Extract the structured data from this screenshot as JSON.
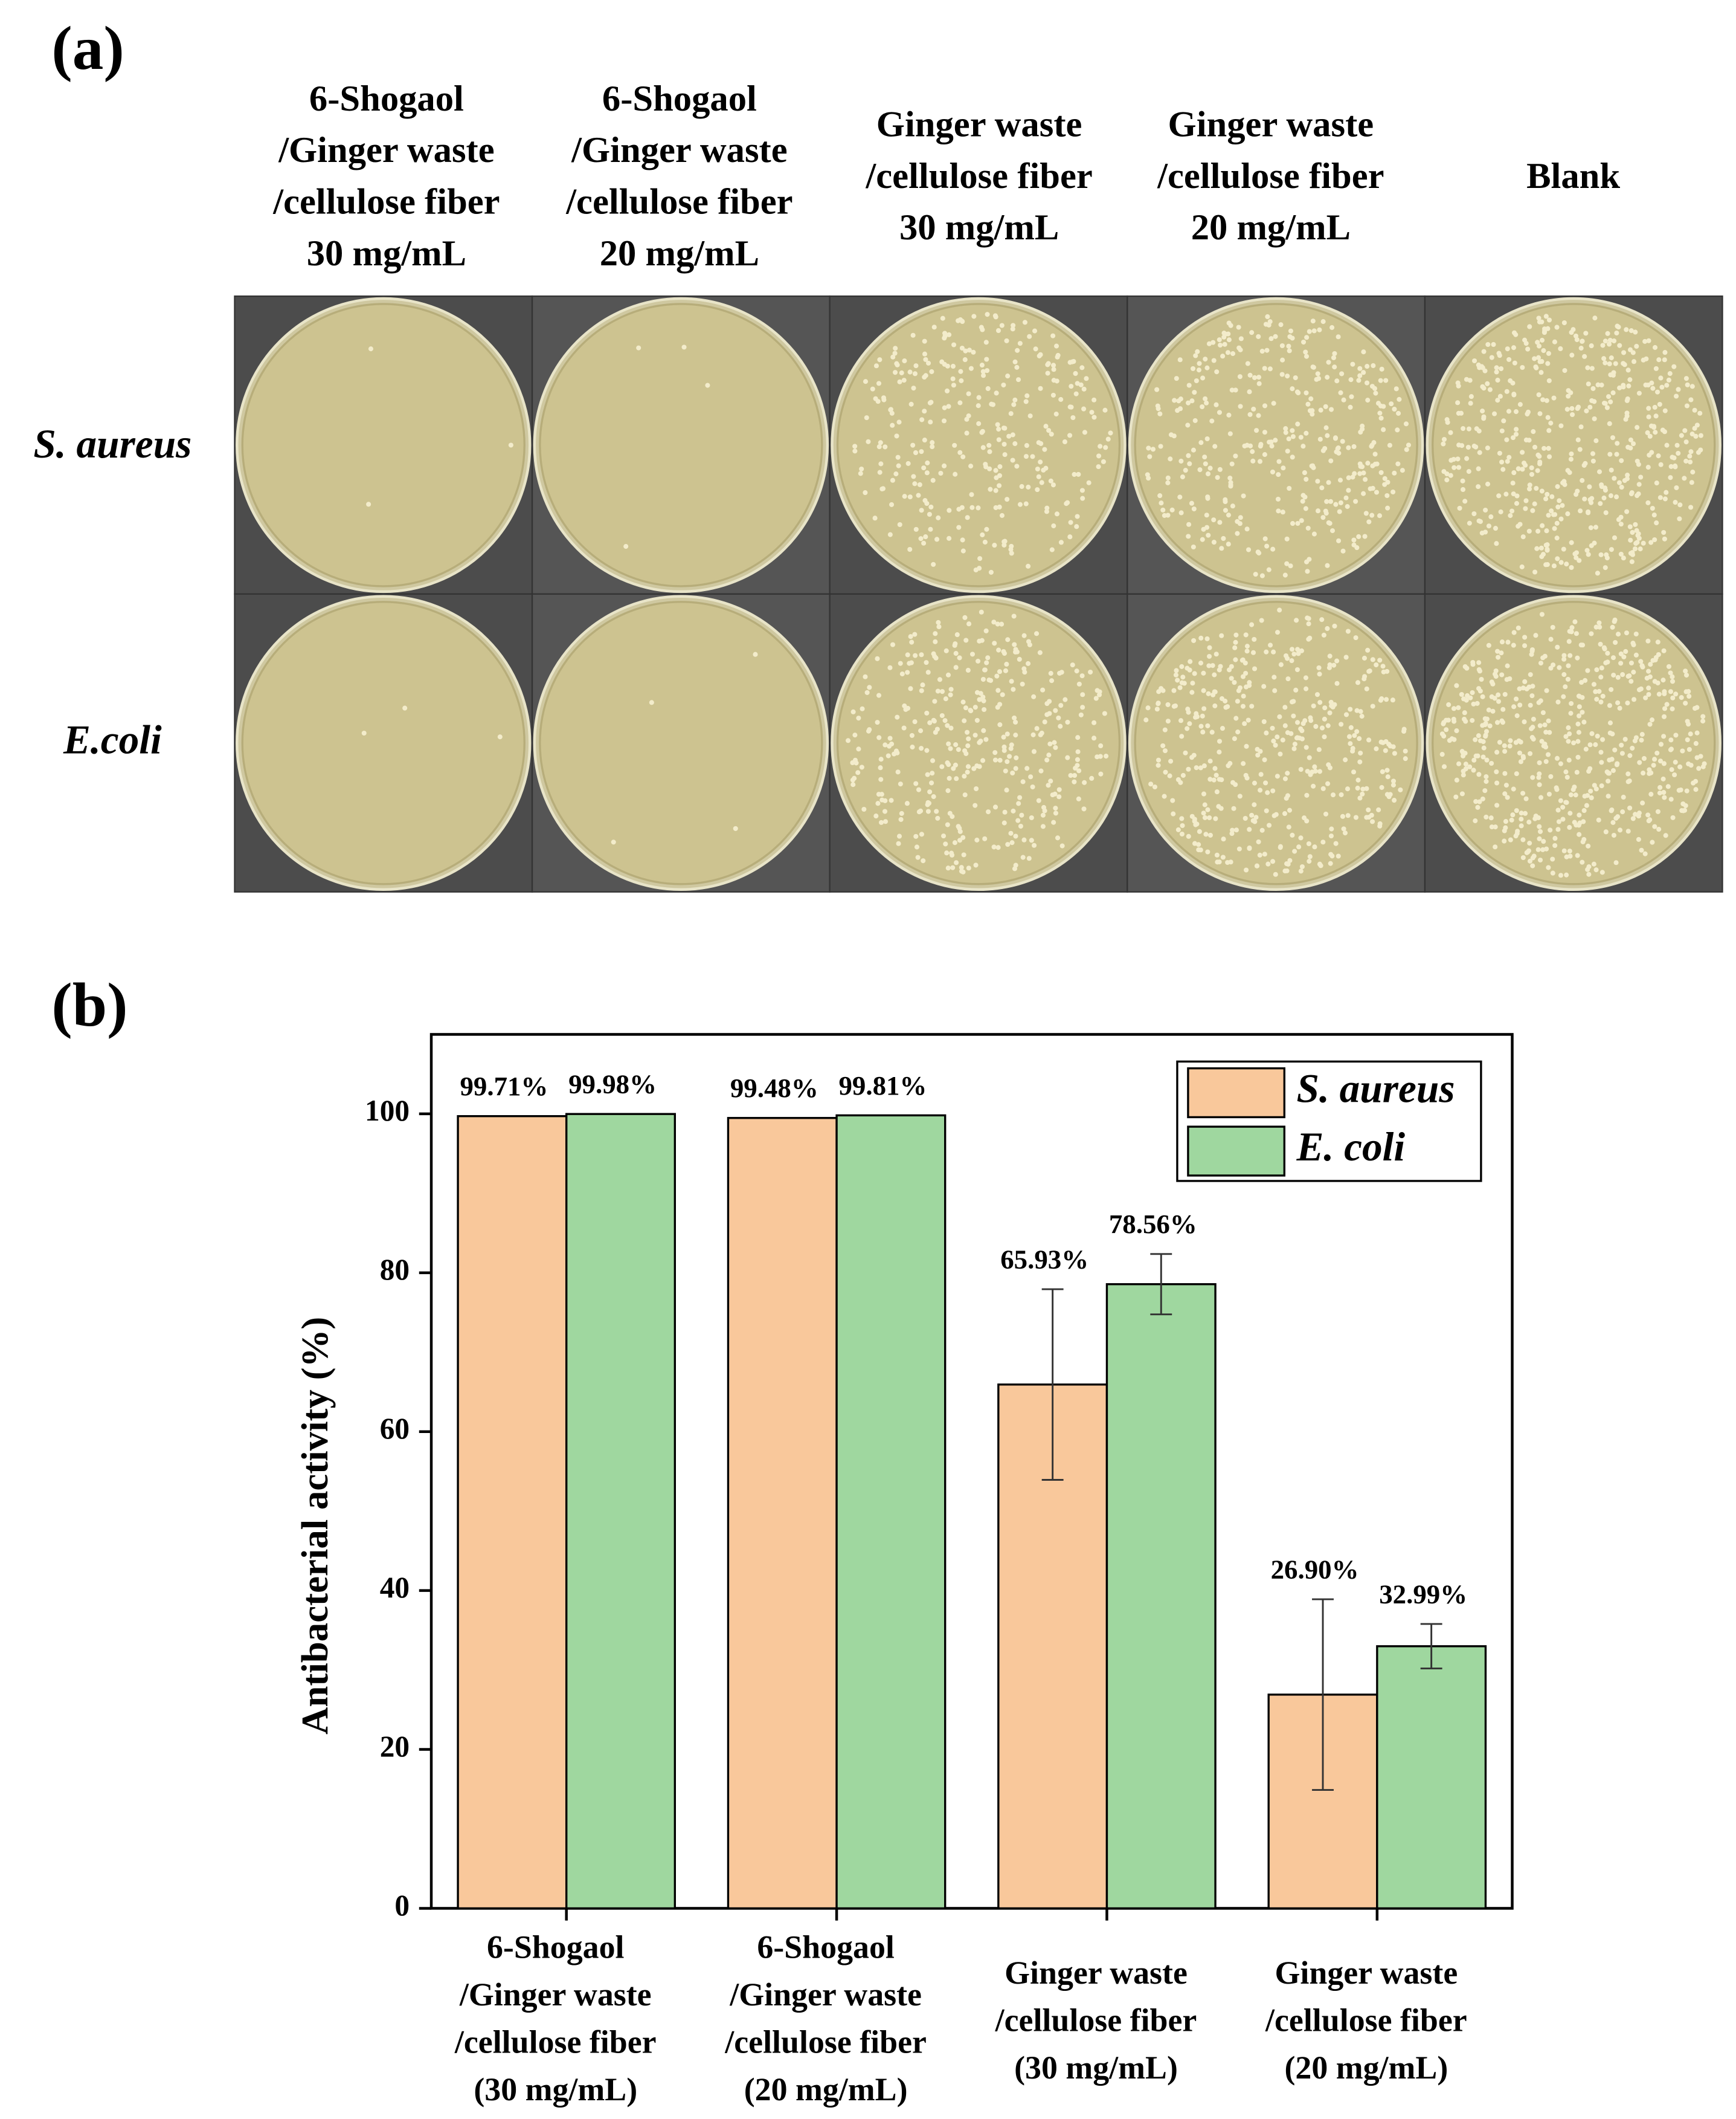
{
  "panel_a": {
    "label": "(a)",
    "columns": [
      [
        "6-Shogaol",
        "/Ginger waste",
        "/cellulose fiber",
        "30 mg/mL"
      ],
      [
        "6-Shogaol",
        "/Ginger waste",
        "/cellulose fiber",
        "20 mg/mL"
      ],
      [
        "Ginger waste",
        "/cellulose fiber",
        "30 mg/mL"
      ],
      [
        "Ginger waste",
        "/cellulose fiber",
        "20 mg/mL"
      ],
      [
        "Blank"
      ]
    ],
    "rows": [
      "S. aureus",
      "E.coli"
    ]
  },
  "chart_data": {
    "type": "bar",
    "panel_label": "(b)",
    "ylabel": "Antibacterial activity (%)",
    "categories": [
      [
        "6-Shogaol",
        "/Ginger waste",
        "/cellulose fiber",
        "(30 mg/mL)"
      ],
      [
        "6-Shogaol",
        "/Ginger waste",
        "/cellulose fiber",
        "(20 mg/mL)"
      ],
      [
        "Ginger waste",
        "/cellulose fiber",
        "(30 mg/mL)"
      ],
      [
        "Ginger waste",
        "/cellulose fiber",
        "(20 mg/mL)"
      ]
    ],
    "series": [
      {
        "name": "S. aureus",
        "color": "#f9c89b",
        "values": [
          99.71,
          99.48,
          65.93,
          26.9
        ],
        "value_labels": [
          "99.71%",
          "99.48%",
          "65.93%",
          "26.90%"
        ],
        "errors": [
          0,
          0,
          12,
          12
        ]
      },
      {
        "name": "E. coli",
        "color": "#9fd79f",
        "values": [
          99.98,
          99.81,
          78.56,
          32.99
        ],
        "value_labels": [
          "99.98%",
          "99.81%",
          "78.56%",
          "32.99%"
        ],
        "errors": [
          0,
          0,
          3.8,
          2.8
        ]
      }
    ],
    "ylim": [
      0,
      110
    ],
    "yticks": [
      0,
      20,
      40,
      60,
      80,
      100
    ],
    "legend": "upper right"
  }
}
